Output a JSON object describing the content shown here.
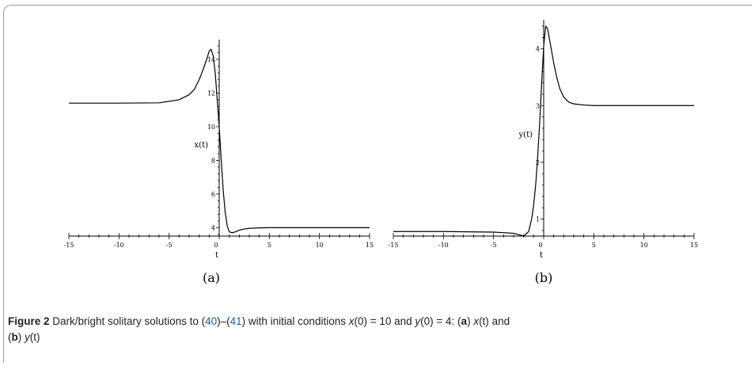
{
  "caption": {
    "label": "Figure 2",
    "text_1": "  Dark/bright solitary solutions to (",
    "ref_1": "40",
    "text_2": ")–(",
    "ref_2": "41",
    "text_3": ") with initial conditions ",
    "cond_x": "x",
    "cond_x_rest": "(0) = 10 and ",
    "cond_y": "y",
    "cond_y_rest": "(0) = 4: (",
    "a": "a",
    "a_rest": ") ",
    "a_func": "x",
    "a_func_rest": "(t)",
    "and_text": " and",
    "b": "b",
    "b_rest": ") ",
    "b_func": "y",
    "b_func_rest": "(t)"
  },
  "chart_data": [
    {
      "type": "line",
      "sublabel": "(a)",
      "xlabel": "t",
      "ylabel": "x(t)",
      "xlim": [
        -15,
        15
      ],
      "ylim": [
        3.5,
        14.8
      ],
      "x_axis_at_y": 3.5,
      "xticks": [
        -15,
        -10,
        -5,
        0,
        5,
        10,
        15
      ],
      "xtick_labels": [
        "-15",
        "-10",
        "-5",
        "0",
        "5",
        "10",
        "15"
      ],
      "yticks": [
        4,
        6,
        8,
        10,
        12,
        14
      ],
      "ytick_labels": [
        "4",
        "6",
        "8",
        "10",
        "12",
        "14"
      ],
      "series": [
        {
          "x": [
            -15,
            -10,
            -6,
            -4,
            -3,
            -2.5,
            -2,
            -1.6,
            -1.2,
            -1.0,
            -0.8,
            -0.6,
            -0.4,
            -0.2,
            0,
            0.2,
            0.4,
            0.6,
            0.8,
            1.0,
            1.3,
            1.6,
            2,
            2.5,
            3,
            4,
            5,
            7,
            10,
            15
          ],
          "y": [
            11.4,
            11.4,
            11.42,
            11.6,
            11.9,
            12.2,
            12.8,
            13.4,
            14.1,
            14.5,
            14.6,
            14.2,
            13.2,
            11.6,
            10.0,
            8.0,
            6.2,
            4.9,
            4.1,
            3.75,
            3.7,
            3.75,
            3.85,
            3.92,
            3.96,
            3.99,
            4.0,
            4.0,
            4.0,
            4.0
          ]
        }
      ]
    },
    {
      "type": "line",
      "sublabel": "(b)",
      "xlabel": "t",
      "ylabel": "y(t)",
      "xlim": [
        -15,
        15
      ],
      "ylim": [
        0.7,
        4.4
      ],
      "x_axis_at_y": 0.7,
      "xticks": [
        -15,
        -10,
        -5,
        0,
        5,
        10,
        15
      ],
      "xtick_labels": [
        "-15",
        "-10",
        "-5",
        "0",
        "5",
        "10",
        "15"
      ],
      "yticks": [
        1,
        2,
        3,
        4
      ],
      "ytick_labels": [
        "1",
        "2",
        "3",
        "4"
      ],
      "series": [
        {
          "x": [
            -15,
            -10,
            -5,
            -3,
            -2,
            -1.5,
            -1.2,
            -1.0,
            -0.8,
            -0.6,
            -0.4,
            -0.2,
            0,
            0.2,
            0.4,
            0.6,
            0.8,
            1.0,
            1.3,
            1.6,
            2,
            2.5,
            3,
            4,
            5,
            7,
            10,
            15
          ],
          "y": [
            0.78,
            0.78,
            0.77,
            0.75,
            0.7,
            0.78,
            1.0,
            1.25,
            1.6,
            2.1,
            2.7,
            3.4,
            4.05,
            4.4,
            4.35,
            4.15,
            3.95,
            3.75,
            3.5,
            3.3,
            3.15,
            3.06,
            3.03,
            3.01,
            3.0,
            3.0,
            3.0,
            3.0
          ]
        }
      ]
    }
  ]
}
